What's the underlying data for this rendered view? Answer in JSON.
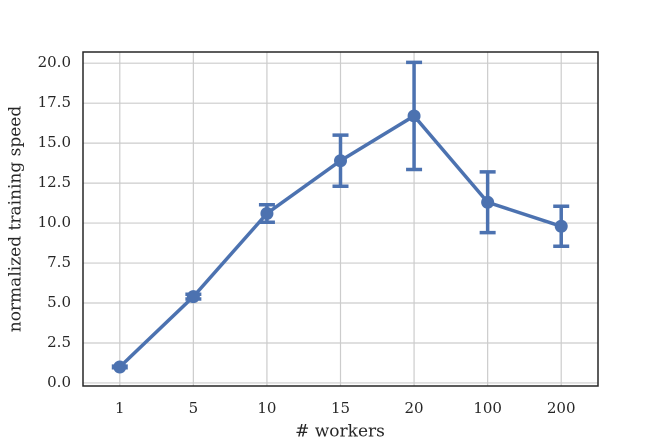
{
  "chart_data": {
    "type": "line",
    "x_label": "# workers",
    "y_label": "normalized training speed",
    "categories": [
      "1",
      "5",
      "10",
      "15",
      "20",
      "100",
      "200"
    ],
    "values": [
      1.0,
      5.4,
      10.6,
      13.9,
      16.7,
      11.3,
      9.8
    ],
    "errors": [
      0.05,
      0.15,
      0.55,
      1.6,
      3.35,
      1.9,
      1.25
    ],
    "color": "#4c72b0",
    "ylim": [
      -0.19,
      20.7
    ],
    "yticks": [
      {
        "value": 0,
        "label": "0.0"
      },
      2.5,
      {
        "value": 5,
        "label": "5.0"
      },
      7.5,
      {
        "value": 10,
        "label": "10.0"
      },
      12.5,
      {
        "value": 15,
        "label": "15.0"
      },
      17.5,
      {
        "value": 20,
        "label": "20.0"
      }
    ],
    "grid": true
  }
}
